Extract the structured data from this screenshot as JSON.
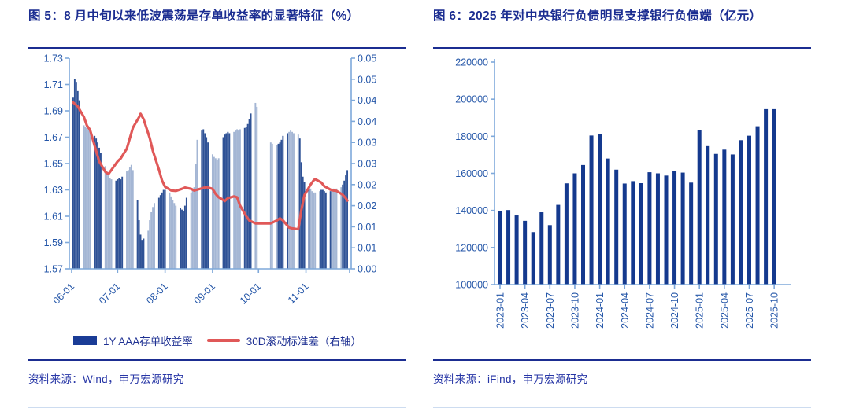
{
  "colors": {
    "navy": "#1b2d91",
    "bar_dark": "#2f5296",
    "bar_light": "#a4b6d4",
    "bar_navy": "#14398e",
    "line_red": "#e05858",
    "axis": "#7fa9da",
    "tick_text": "#2456a8"
  },
  "figure5": {
    "title": "图 5：8 月中旬以来低波震荡是存单收益率的显著特征（%）",
    "source": "资料来源：Wind，申万宏源研究",
    "legend": {
      "bar_label": "1Y AAA存单收益率",
      "line_label": "30D滚动标准差（右轴）"
    },
    "chart_data": {
      "type": "bar+line (dual axis)",
      "title": "8月中旬以来低波震荡是存单收益率的显著特征（%）",
      "left_axis": {
        "min": 1.57,
        "max": 1.73,
        "step": 0.02,
        "tick_labels": [
          "1.57",
          "1.59",
          "1.61",
          "1.63",
          "1.65",
          "1.67",
          "1.69",
          "1.71",
          "1.73"
        ]
      },
      "right_axis": {
        "min": 0.0,
        "max": 0.05,
        "step": 0.005,
        "tick_labels": [
          "0.00",
          "0.01",
          "0.01",
          "0.02",
          "0.02",
          "0.03",
          "0.03",
          "0.04",
          "0.04",
          "0.05",
          "0.05"
        ]
      },
      "x_ticks": [
        "06-01",
        "07-01",
        "08-01",
        "09-01",
        "10-01",
        "11-01"
      ],
      "bars": {
        "name": "1Y AAA存单收益率",
        "dates": [
          "06-02",
          "06-03",
          "06-04",
          "06-05",
          "06-06",
          "06-09",
          "06-10",
          "06-11",
          "06-12",
          "06-13",
          "06-16",
          "06-17",
          "06-18",
          "06-19",
          "06-20",
          "06-23",
          "06-24",
          "06-25",
          "06-26",
          "06-27",
          "06-30",
          "07-01",
          "07-02",
          "07-03",
          "07-04",
          "07-07",
          "07-08",
          "07-09",
          "07-10",
          "07-11",
          "07-14",
          "07-15",
          "07-16",
          "07-17",
          "07-18",
          "07-21",
          "07-22",
          "07-23",
          "07-24",
          "07-25",
          "07-28",
          "07-29",
          "07-30",
          "07-31",
          "08-01",
          "08-04",
          "08-05",
          "08-06",
          "08-07",
          "08-08",
          "08-11",
          "08-12",
          "08-13",
          "08-14",
          "08-15",
          "08-18",
          "08-19",
          "08-20",
          "08-21",
          "08-22",
          "08-25",
          "08-26",
          "08-27",
          "08-28",
          "08-29",
          "09-01",
          "09-02",
          "09-03",
          "09-04",
          "09-05",
          "09-08",
          "09-09",
          "09-10",
          "09-11",
          "09-12",
          "09-15",
          "09-16",
          "09-17",
          "09-18",
          "09-19",
          "09-22",
          "09-23",
          "09-24",
          "09-25",
          "09-26",
          "09-29",
          "09-30",
          "10-09",
          "10-10",
          "10-13",
          "10-14",
          "10-15",
          "10-16",
          "10-17",
          "10-20",
          "10-21",
          "10-22",
          "10-23",
          "10-24",
          "10-27",
          "10-28",
          "10-29",
          "10-30",
          "10-31",
          "11-03",
          "11-04",
          "11-05",
          "11-06",
          "11-07",
          "11-10",
          "11-11",
          "11-12",
          "11-13",
          "11-14",
          "11-17",
          "11-18",
          "11-19",
          "11-20",
          "11-21",
          "11-24",
          "11-25",
          "11-26",
          "11-27",
          "11-28"
        ],
        "values": [
          1.7,
          1.714,
          1.712,
          1.705,
          1.698,
          1.679,
          1.678,
          1.677,
          1.676,
          1.676,
          1.671,
          1.669,
          1.666,
          1.662,
          1.658,
          1.648,
          1.644,
          1.641,
          1.639,
          1.638,
          1.637,
          1.638,
          1.639,
          1.638,
          1.64,
          1.644,
          1.645,
          1.647,
          1.649,
          1.645,
          1.622,
          1.607,
          1.596,
          1.592,
          1.593,
          1.599,
          1.607,
          1.613,
          1.617,
          1.62,
          1.624,
          1.626,
          1.628,
          1.63,
          1.63,
          1.628,
          1.625,
          1.622,
          1.62,
          1.618,
          1.616,
          1.615,
          1.614,
          1.618,
          1.624,
          1.628,
          1.63,
          1.632,
          1.65,
          1.668,
          1.675,
          1.676,
          1.673,
          1.67,
          1.666,
          1.657,
          1.655,
          1.654,
          1.653,
          1.654,
          1.67,
          1.672,
          1.673,
          1.674,
          1.673,
          1.674,
          1.675,
          1.676,
          1.675,
          1.676,
          1.677,
          1.678,
          1.68,
          1.684,
          1.688,
          1.696,
          1.693,
          1.666,
          1.665,
          1.664,
          1.665,
          1.666,
          1.668,
          1.671,
          1.673,
          1.674,
          1.675,
          1.674,
          1.673,
          1.672,
          1.669,
          1.651,
          1.64,
          1.636,
          1.633,
          1.631,
          1.629,
          1.628,
          1.628,
          1.629,
          1.63,
          1.63,
          1.629,
          1.628,
          1.629,
          1.63,
          1.631,
          1.63,
          1.631,
          1.632,
          1.634,
          1.637,
          1.641,
          1.645
        ]
      },
      "line": {
        "name": "30D滚动标准差（右轴）",
        "axis": "right",
        "anchors": [
          [
            "06-02",
            0.0395
          ],
          [
            "06-05",
            0.0385
          ],
          [
            "06-09",
            0.036
          ],
          [
            "06-11",
            0.034
          ],
          [
            "06-13",
            0.033
          ],
          [
            "06-17",
            0.028
          ],
          [
            "06-19",
            0.0255
          ],
          [
            "06-23",
            0.023
          ],
          [
            "06-25",
            0.0225
          ],
          [
            "06-27",
            0.0235
          ],
          [
            "07-01",
            0.0255
          ],
          [
            "07-03",
            0.0262
          ],
          [
            "07-07",
            0.0285
          ],
          [
            "07-09",
            0.031
          ],
          [
            "07-11",
            0.0335
          ],
          [
            "07-15",
            0.036
          ],
          [
            "07-16",
            0.0368
          ],
          [
            "07-18",
            0.0355
          ],
          [
            "07-22",
            0.031
          ],
          [
            "07-24",
            0.028
          ],
          [
            "07-28",
            0.0235
          ],
          [
            "07-30",
            0.021
          ],
          [
            "08-01",
            0.0195
          ],
          [
            "08-05",
            0.0186
          ],
          [
            "08-08",
            0.0185
          ],
          [
            "08-12",
            0.019
          ],
          [
            "08-14",
            0.0193
          ],
          [
            "08-18",
            0.019
          ],
          [
            "08-20",
            0.0186
          ],
          [
            "08-22",
            0.0188
          ],
          [
            "08-26",
            0.0192
          ],
          [
            "08-28",
            0.0194
          ],
          [
            "09-01",
            0.019
          ],
          [
            "09-03",
            0.0178
          ],
          [
            "09-05",
            0.017
          ],
          [
            "09-09",
            0.0161
          ],
          [
            "09-11",
            0.0168
          ],
          [
            "09-15",
            0.0172
          ],
          [
            "09-17",
            0.017
          ],
          [
            "09-19",
            0.015
          ],
          [
            "09-23",
            0.0125
          ],
          [
            "09-25",
            0.0115
          ],
          [
            "09-29",
            0.0108
          ],
          [
            "10-09",
            0.0108
          ],
          [
            "10-13",
            0.0115
          ],
          [
            "10-15",
            0.012
          ],
          [
            "10-17",
            0.0115
          ],
          [
            "10-21",
            0.0098
          ],
          [
            "10-23",
            0.0096
          ],
          [
            "10-27",
            0.0094
          ],
          [
            "10-29",
            0.014
          ],
          [
            "10-31",
            0.0175
          ],
          [
            "11-04",
            0.02
          ],
          [
            "11-06",
            0.021
          ],
          [
            "11-07",
            0.0213
          ],
          [
            "11-11",
            0.0205
          ],
          [
            "11-13",
            0.0196
          ],
          [
            "11-17",
            0.0188
          ],
          [
            "11-19",
            0.0186
          ],
          [
            "11-21",
            0.0185
          ],
          [
            "11-25",
            0.0176
          ],
          [
            "11-27",
            0.0168
          ],
          [
            "11-28",
            0.0162
          ]
        ]
      }
    }
  },
  "figure6": {
    "title": "图 6：2025 年对中央银行负债明显支撑银行负债端（亿元）",
    "source": "资料来源：iFind，申万宏源研究",
    "chart_data": {
      "type": "bar",
      "title": "2025年对中央银行负债明显支撑银行负债端（亿元）",
      "categories": [
        "2023-01",
        "2023-02",
        "2023-03",
        "2023-04",
        "2023-05",
        "2023-06",
        "2023-07",
        "2023-08",
        "2023-09",
        "2023-10",
        "2023-11",
        "2023-12",
        "2024-01",
        "2024-02",
        "2024-03",
        "2024-04",
        "2024-05",
        "2024-06",
        "2024-07",
        "2024-08",
        "2024-09",
        "2024-10",
        "2024-11",
        "2024-12",
        "2025-01",
        "2025-02",
        "2025-03",
        "2025-04",
        "2025-05",
        "2025-06",
        "2025-07",
        "2025-08",
        "2025-09",
        "2025-10"
      ],
      "values": [
        139700,
        140200,
        137300,
        134400,
        128300,
        139000,
        132100,
        143000,
        154600,
        160000,
        164500,
        180400,
        181200,
        168000,
        162000,
        154500,
        155800,
        154700,
        160600,
        160000,
        158800,
        161100,
        160400,
        155000,
        183300,
        174700,
        170500,
        172800,
        170200,
        177900,
        180300,
        185400,
        194600,
        194600
      ],
      "ylim": [
        100000,
        220000
      ],
      "ytick_step": 20000,
      "y_tick_labels": [
        "100000",
        "120000",
        "140000",
        "160000",
        "180000",
        "200000",
        "220000"
      ],
      "x_label_every": 3
    }
  }
}
